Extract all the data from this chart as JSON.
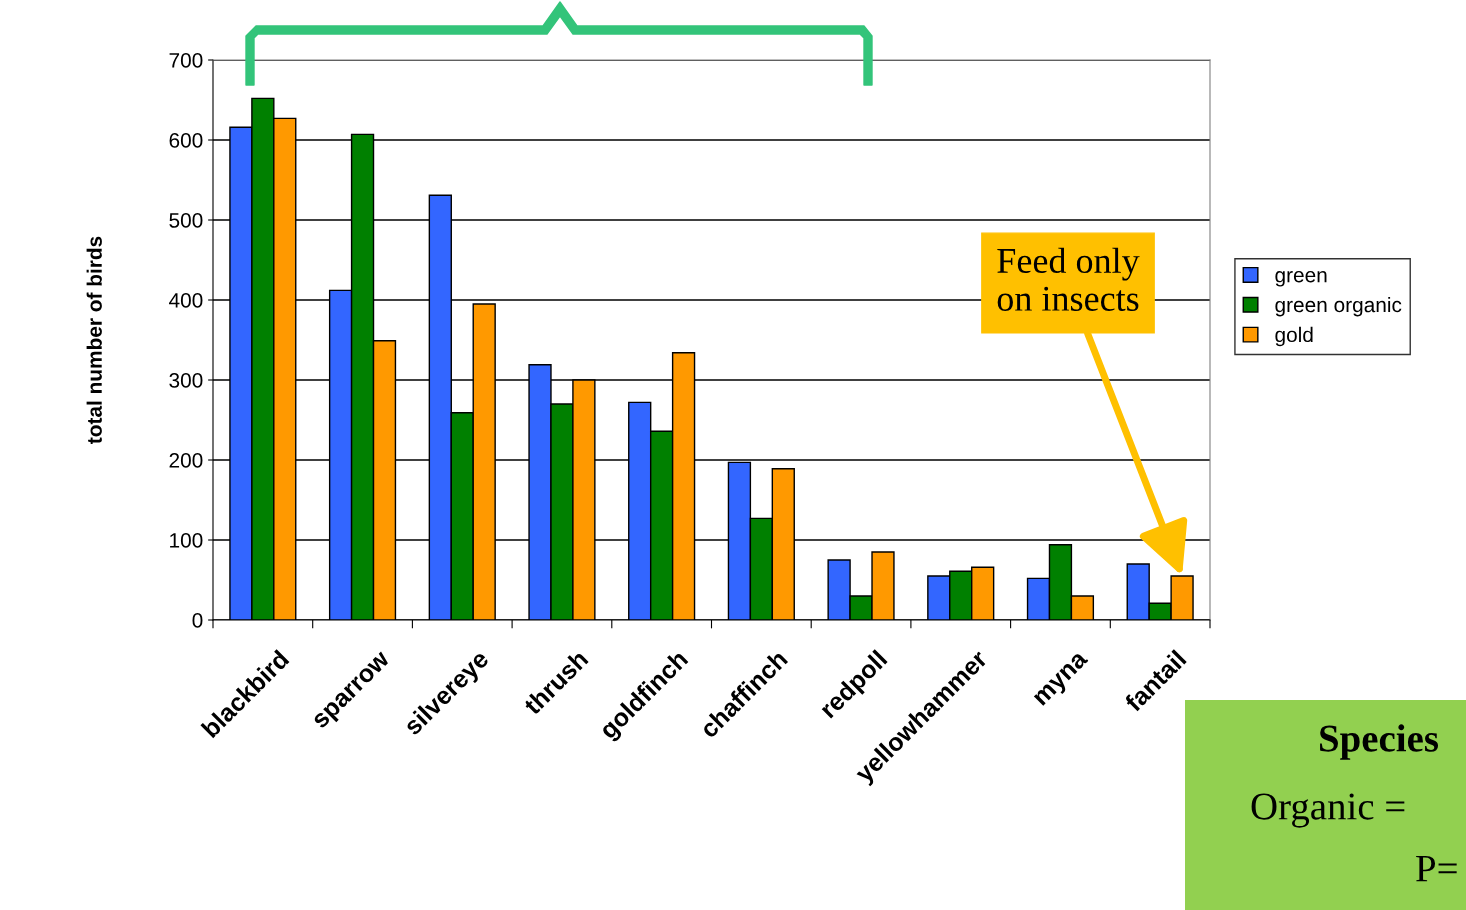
{
  "chart_data": {
    "type": "bar",
    "ylabel": "total number of birds",
    "categories": [
      "blackbird",
      "sparrow",
      "silvereye",
      "thrush",
      "goldfinch",
      "chaffinch",
      "redpoll",
      "yellowhammer",
      "myna",
      "fantail"
    ],
    "series": [
      {
        "name": "green",
        "color": "#3366ff",
        "values": [
          616,
          412,
          531,
          319,
          272,
          197,
          75,
          55,
          52,
          70
        ]
      },
      {
        "name": "green organic",
        "color": "#008000",
        "values": [
          652,
          607,
          259,
          270,
          236,
          127,
          30,
          61,
          94,
          21
        ]
      },
      {
        "name": "gold",
        "color": "#ff9900",
        "values": [
          627,
          349,
          395,
          300,
          334,
          189,
          85,
          66,
          30,
          55
        ]
      }
    ],
    "ylim": [
      0,
      700
    ],
    "yticks": [
      0,
      100,
      200,
      300,
      400,
      500,
      600,
      700
    ],
    "grid": "y",
    "legend": "right",
    "annotations": [
      {
        "text": "Feed only\non insects",
        "x": "fantail",
        "y": 55
      },
      "Species",
      "Organic =",
      "P="
    ]
  }
}
